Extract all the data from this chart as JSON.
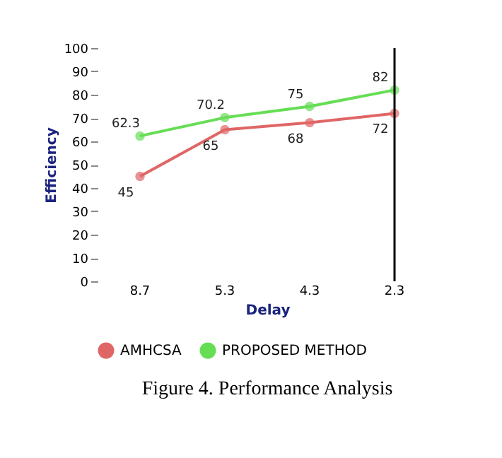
{
  "chart_data": {
    "type": "line",
    "title": "Figure 4. Performance Analysis",
    "xlabel": "Delay",
    "ylabel": "Efficiency",
    "categories": [
      "8.7",
      "5.3",
      "4.3",
      "2.3"
    ],
    "series": [
      {
        "name": "AMHCSA",
        "color": "#e06666",
        "values": [
          45,
          65,
          68,
          72
        ]
      },
      {
        "name": "PROPOSED METHOD",
        "color": "#66dd55",
        "values": [
          62.3,
          70.2,
          75,
          82
        ]
      }
    ],
    "ylim": [
      0,
      100
    ],
    "yticks": [
      0,
      10,
      20,
      30,
      40,
      50,
      60,
      70,
      80,
      90,
      100
    ],
    "ref_lines": [
      {
        "axis": "x",
        "value": "2.3",
        "color": "#000000"
      }
    ],
    "data_labels": true,
    "marker": "circle",
    "legend": "bottom",
    "grid": false
  }
}
